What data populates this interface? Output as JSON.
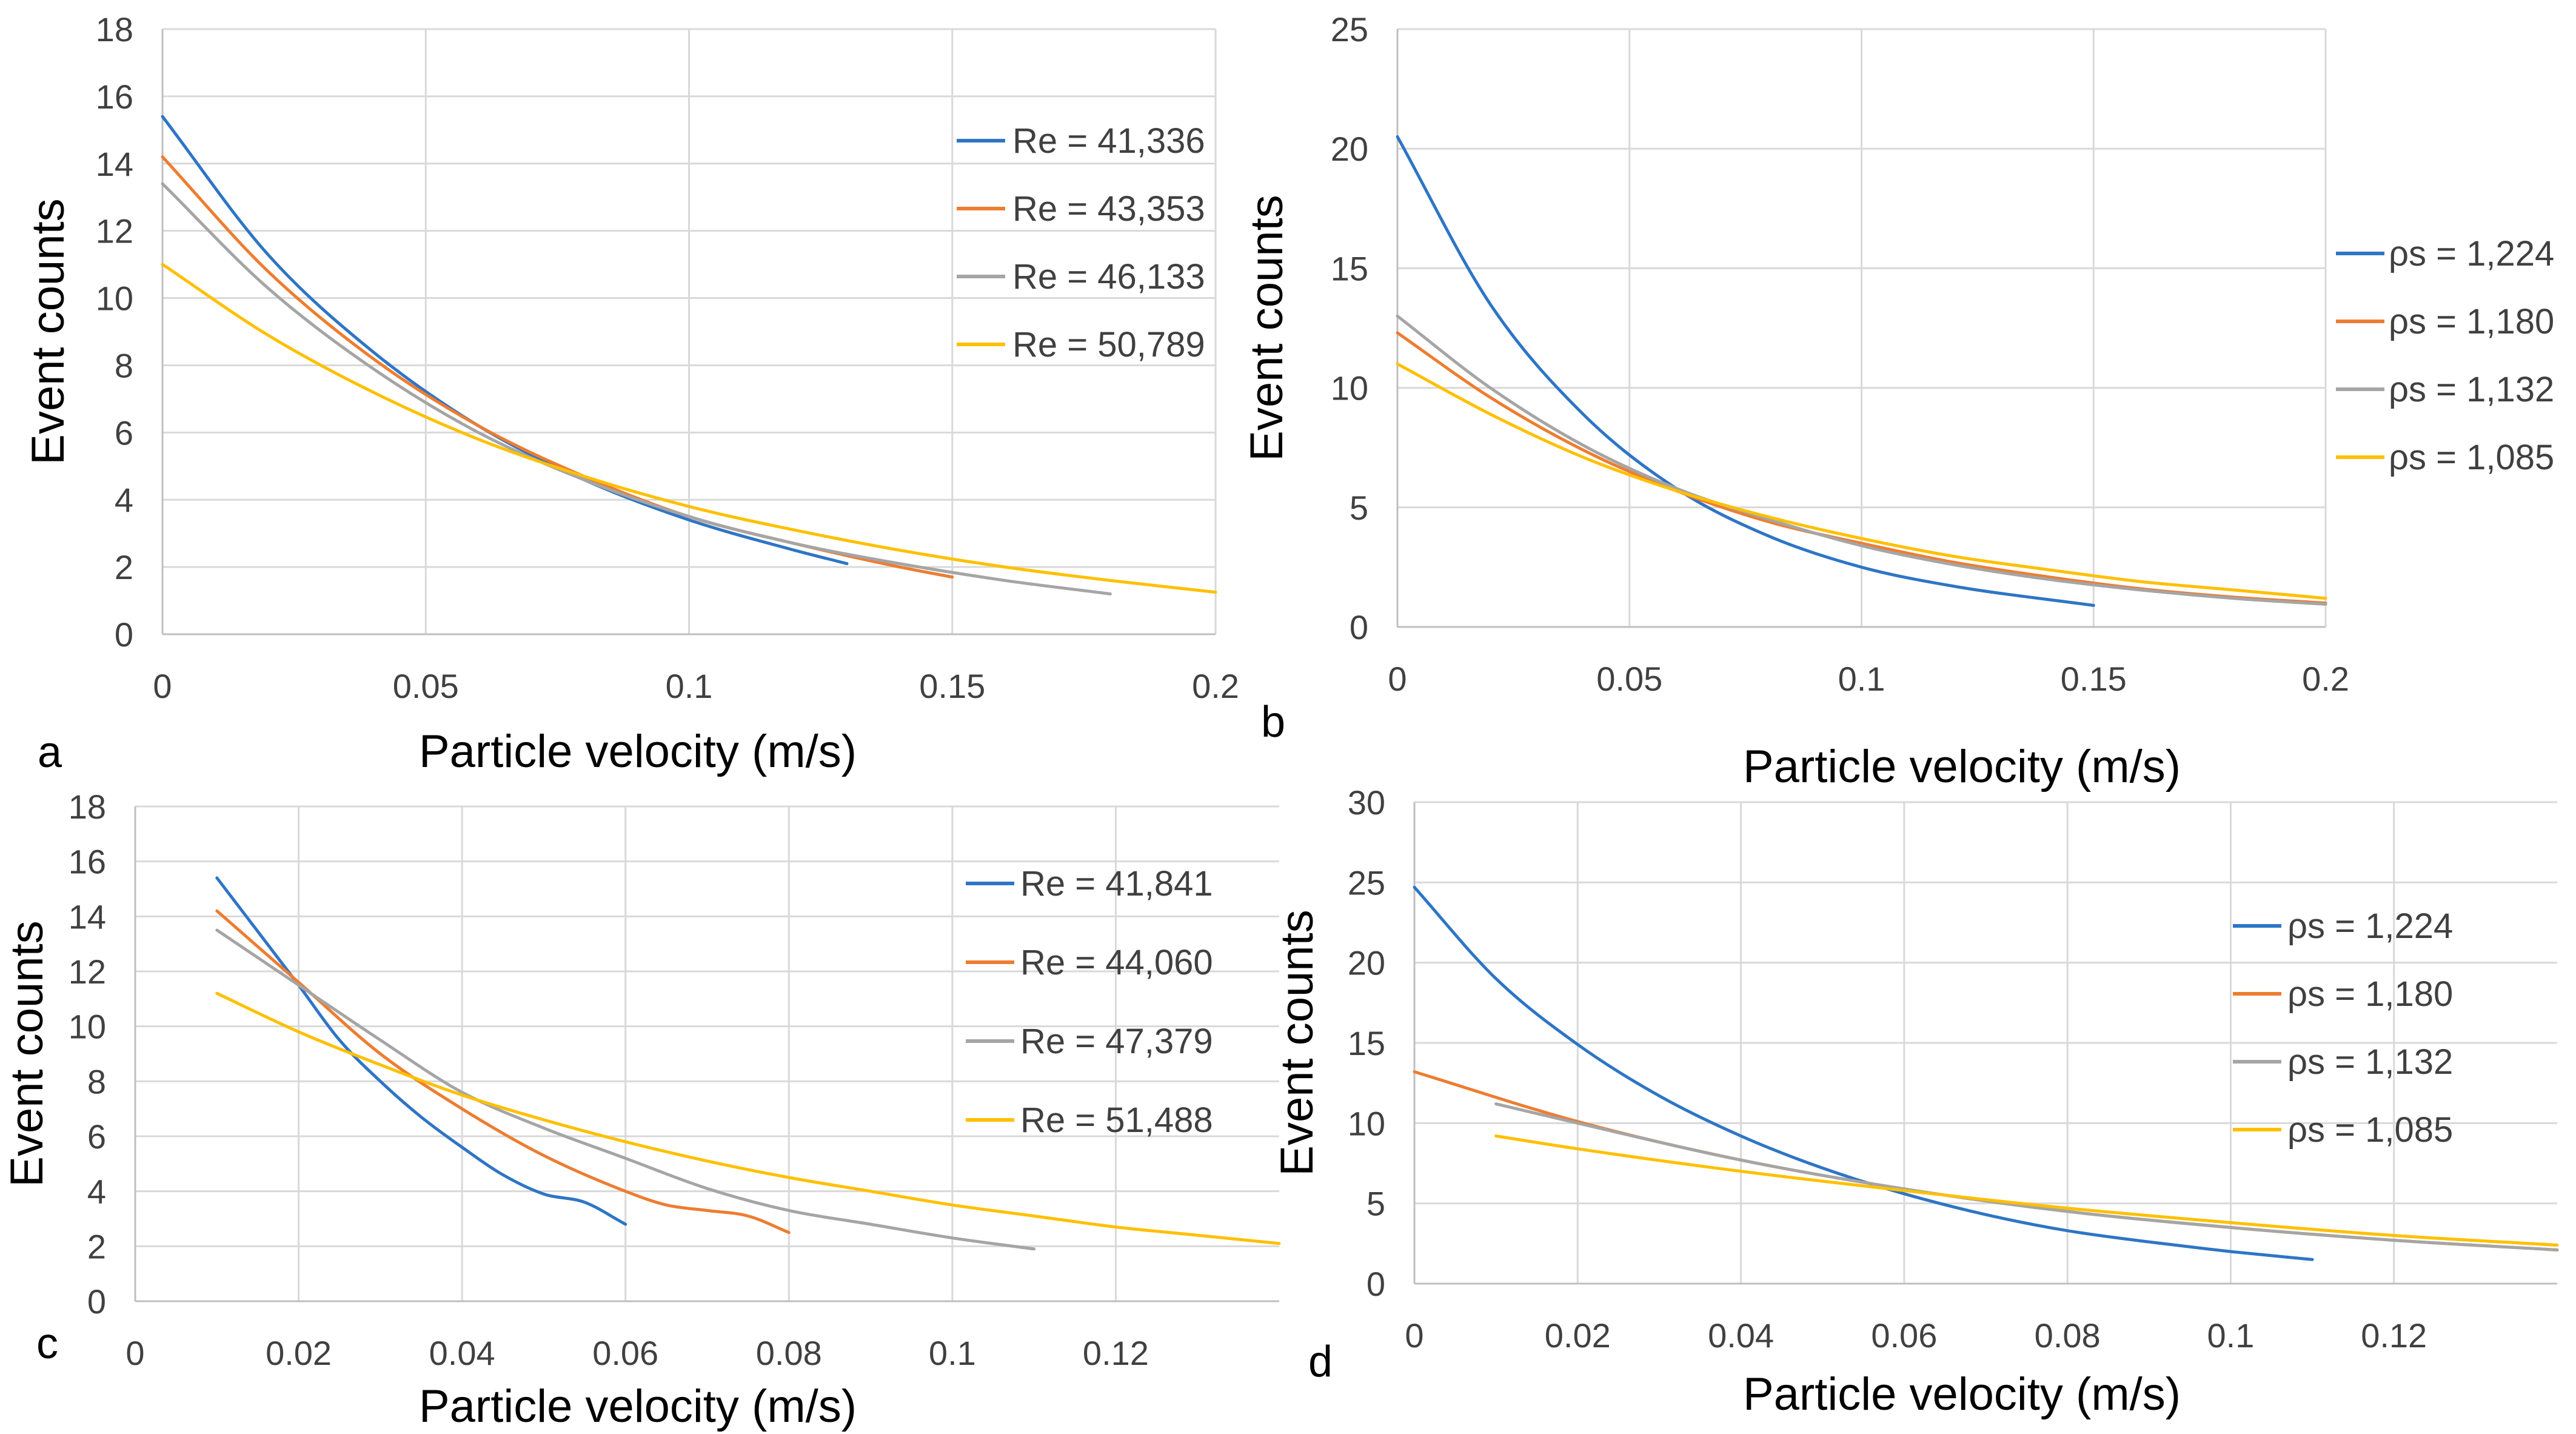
{
  "colors": {
    "blue": "#2E75C5",
    "orange": "#ED7D31",
    "gray": "#A5A5A5",
    "yellow": "#FFC000"
  },
  "chart_data": [
    {
      "id": "a",
      "panel_letter": "a",
      "type": "line",
      "xlabel": "Particle velocity (m/s)",
      "ylabel": "Event counts",
      "xlim": [
        0,
        0.2
      ],
      "ylim": [
        0,
        18
      ],
      "xticks": [
        0,
        0.05,
        0.1,
        0.15,
        0.2
      ],
      "xtick_labels": [
        "0",
        "0.05",
        "0.1",
        "0.15",
        "0.2"
      ],
      "yticks": [
        0,
        2,
        4,
        6,
        8,
        10,
        12,
        14,
        16,
        18
      ],
      "ytick_labels": [
        "0",
        "2",
        "4",
        "6",
        "8",
        "10",
        "12",
        "14",
        "16",
        "18"
      ],
      "series": [
        {
          "name": "Re = 41,336",
          "color": "#2E75C5",
          "x": [
            0,
            0.02,
            0.04,
            0.06,
            0.08,
            0.1,
            0.12,
            0.13
          ],
          "y": [
            15.4,
            11.3,
            8.4,
            6.2,
            4.6,
            3.4,
            2.5,
            2.1
          ]
        },
        {
          "name": "Re = 43,353",
          "color": "#ED7D31",
          "x": [
            0,
            0.02,
            0.04,
            0.06,
            0.08,
            0.1,
            0.12,
            0.14,
            0.15
          ],
          "y": [
            14.2,
            10.8,
            8.2,
            6.2,
            4.7,
            3.5,
            2.7,
            2.0,
            1.7
          ]
        },
        {
          "name": "Re = 46,133",
          "color": "#A5A5A5",
          "x": [
            0,
            0.02,
            0.04,
            0.06,
            0.08,
            0.1,
            0.12,
            0.14,
            0.16,
            0.18
          ],
          "y": [
            13.4,
            10.3,
            7.9,
            6.0,
            4.6,
            3.5,
            2.7,
            2.1,
            1.6,
            1.2
          ]
        },
        {
          "name": "Re = 50,789",
          "color": "#FFC000",
          "x": [
            0,
            0.02,
            0.04,
            0.06,
            0.08,
            0.1,
            0.12,
            0.14,
            0.16,
            0.18,
            0.2
          ],
          "y": [
            11.0,
            8.9,
            7.2,
            5.8,
            4.7,
            3.8,
            3.1,
            2.5,
            2.0,
            1.6,
            1.25
          ]
        }
      ]
    },
    {
      "id": "b",
      "panel_letter": "b",
      "type": "line",
      "xlabel": "Particle velocity (m/s)",
      "ylabel": "Event counts",
      "xlim": [
        0,
        0.2
      ],
      "ylim": [
        0,
        25
      ],
      "xticks": [
        0,
        0.05,
        0.1,
        0.15,
        0.2
      ],
      "xtick_labels": [
        "0",
        "0.05",
        "0.1",
        "0.15",
        "0.2"
      ],
      "yticks": [
        0,
        5,
        10,
        15,
        20,
        25
      ],
      "ytick_labels": [
        "0",
        "5",
        "10",
        "15",
        "20",
        "25"
      ],
      "series": [
        {
          "name": "ρs = 1,224",
          "color": "#2E75C5",
          "x": [
            0,
            0.02,
            0.04,
            0.06,
            0.08,
            0.1,
            0.12,
            0.15
          ],
          "y": [
            20.5,
            13.5,
            8.9,
            5.8,
            3.8,
            2.5,
            1.7,
            0.9
          ]
        },
        {
          "name": "ρs = 1,180",
          "color": "#ED7D31",
          "x": [
            0,
            0.02,
            0.04,
            0.06,
            0.08,
            0.1,
            0.12,
            0.14,
            0.16,
            0.18,
            0.2
          ],
          "y": [
            12.3,
            9.6,
            7.4,
            5.7,
            4.4,
            3.5,
            2.7,
            2.1,
            1.6,
            1.25,
            1.0
          ]
        },
        {
          "name": "ρs = 1,132",
          "color": "#A5A5A5",
          "x": [
            0,
            0.02,
            0.04,
            0.06,
            0.08,
            0.1,
            0.12,
            0.14,
            0.16,
            0.18,
            0.2
          ],
          "y": [
            13.0,
            10.0,
            7.6,
            5.8,
            4.5,
            3.4,
            2.6,
            2.0,
            1.55,
            1.2,
            0.95
          ]
        },
        {
          "name": "ρs = 1,085",
          "color": "#FFC000",
          "x": [
            0,
            0.02,
            0.04,
            0.06,
            0.08,
            0.1,
            0.12,
            0.14,
            0.16,
            0.18,
            0.2
          ],
          "y": [
            11.0,
            8.9,
            7.1,
            5.7,
            4.6,
            3.7,
            2.95,
            2.4,
            1.9,
            1.55,
            1.2
          ]
        }
      ]
    },
    {
      "id": "c",
      "panel_letter": "c",
      "type": "line",
      "xlabel": "Particle velocity (m/s)",
      "ylabel": "Event counts",
      "xlim": [
        0,
        0.14
      ],
      "ylim": [
        0,
        18
      ],
      "xticks": [
        0,
        0.02,
        0.04,
        0.06,
        0.08,
        0.1,
        0.12
      ],
      "xtick_labels": [
        "0",
        "0.02",
        "0.04",
        "0.06",
        "0.08",
        "0.1",
        "0.12"
      ],
      "yticks": [
        0,
        2,
        4,
        6,
        8,
        10,
        12,
        14,
        16,
        18
      ],
      "ytick_labels": [
        "0",
        "2",
        "4",
        "6",
        "8",
        "10",
        "12",
        "14",
        "16",
        "18"
      ],
      "series": [
        {
          "name": "Re = 41,841",
          "color": "#2E75C5",
          "x": [
            0.01,
            0.02,
            0.025,
            0.03,
            0.035,
            0.04,
            0.045,
            0.05,
            0.055,
            0.06
          ],
          "y": [
            15.4,
            11.5,
            9.5,
            8.0,
            6.7,
            5.6,
            4.6,
            3.9,
            3.6,
            2.8
          ]
        },
        {
          "name": "Re = 44,060",
          "color": "#ED7D31",
          "x": [
            0.01,
            0.02,
            0.03,
            0.04,
            0.05,
            0.06,
            0.065,
            0.07,
            0.075,
            0.08
          ],
          "y": [
            14.2,
            11.6,
            9.0,
            7.0,
            5.3,
            4.0,
            3.5,
            3.3,
            3.1,
            2.5
          ]
        },
        {
          "name": "Re = 47,379",
          "color": "#A5A5A5",
          "x": [
            0.01,
            0.02,
            0.03,
            0.04,
            0.05,
            0.06,
            0.07,
            0.08,
            0.09,
            0.1,
            0.11
          ],
          "y": [
            13.5,
            11.5,
            9.5,
            7.6,
            6.3,
            5.2,
            4.1,
            3.3,
            2.8,
            2.3,
            1.9
          ]
        },
        {
          "name": "Re = 51,488",
          "color": "#FFC000",
          "x": [
            0.01,
            0.02,
            0.03,
            0.04,
            0.05,
            0.06,
            0.07,
            0.08,
            0.09,
            0.1,
            0.11,
            0.12,
            0.13,
            0.14
          ],
          "y": [
            11.2,
            9.8,
            8.6,
            7.5,
            6.6,
            5.8,
            5.1,
            4.5,
            4.0,
            3.5,
            3.1,
            2.7,
            2.4,
            2.1
          ]
        }
      ]
    },
    {
      "id": "d",
      "panel_letter": "d",
      "type": "line",
      "xlabel": "Particle velocity (m/s)",
      "ylabel": "Event counts",
      "xlim": [
        0,
        0.14
      ],
      "ylim": [
        0,
        30
      ],
      "xticks": [
        0,
        0.02,
        0.04,
        0.06,
        0.08,
        0.1,
        0.12
      ],
      "xtick_labels": [
        "0",
        "0.02",
        "0.04",
        "0.06",
        "0.08",
        "0.1",
        "0.12"
      ],
      "yticks": [
        0,
        5,
        10,
        15,
        20,
        25,
        30
      ],
      "ytick_labels": [
        "0",
        "5",
        "10",
        "15",
        "20",
        "25",
        "30"
      ],
      "series": [
        {
          "name": "ρs = 1,224",
          "color": "#2E75C5",
          "x": [
            0,
            0.01,
            0.02,
            0.03,
            0.04,
            0.05,
            0.06,
            0.07,
            0.08,
            0.09,
            0.1,
            0.11
          ],
          "y": [
            24.7,
            19.0,
            14.9,
            11.7,
            9.2,
            7.2,
            5.6,
            4.3,
            3.3,
            2.6,
            2.0,
            1.5
          ]
        },
        {
          "name": "ρs = 1,180",
          "color": "#ED7D31",
          "x": [
            0,
            0.02,
            0.04,
            0.06,
            0.08,
            0.1,
            0.12,
            0.14
          ],
          "y": [
            13.2,
            10.1,
            7.7,
            5.9,
            4.5,
            3.5,
            2.7,
            2.1
          ]
        },
        {
          "name": "ρs = 1,132",
          "color": "#A5A5A5",
          "x": [
            0.01,
            0.02,
            0.04,
            0.06,
            0.08,
            0.1,
            0.12,
            0.14
          ],
          "y": [
            11.2,
            10.0,
            7.7,
            5.9,
            4.5,
            3.5,
            2.7,
            2.1
          ]
        },
        {
          "name": "ρs = 1,085",
          "color": "#FFC000",
          "x": [
            0.01,
            0.02,
            0.04,
            0.06,
            0.08,
            0.1,
            0.12,
            0.14
          ],
          "y": [
            9.2,
            8.4,
            7.0,
            5.8,
            4.7,
            3.8,
            3.0,
            2.4
          ]
        }
      ]
    }
  ]
}
